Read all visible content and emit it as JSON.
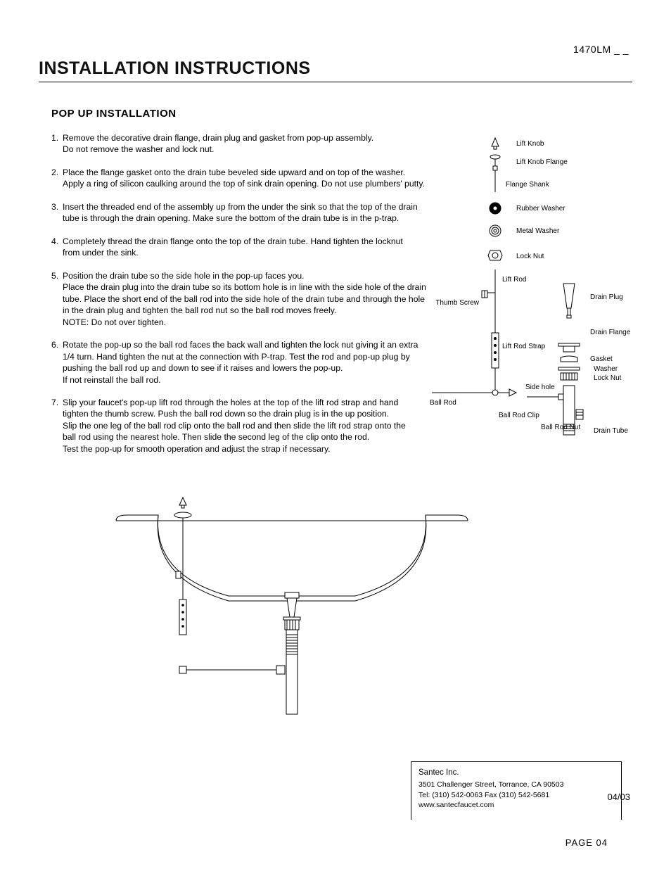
{
  "header": {
    "model": "1470LM _ _",
    "title": "INSTALLATION INSTRUCTIONS"
  },
  "section": {
    "subtitle": "POP UP INSTALLATION"
  },
  "steps": [
    {
      "n": "1.",
      "text": "Remove the decorative drain flange, drain plug and gasket from pop-up assembly.\nDo not remove the washer and lock nut."
    },
    {
      "n": "2.",
      "text": "Place the flange gasket onto the drain tube beveled side upward  and on top of the  washer.\nApply a ring of silicon caulking around the top of sink drain opening. Do not use plumbers' putty."
    },
    {
      "n": "3.",
      "text": "Insert the threaded end of the assembly up from the under  the sink so that the top of the drain\ntube is through the drain opening.  Make sure the bottom of the drain tube is in the p-trap."
    },
    {
      "n": "4.",
      "text": "Completely thread the drain flange onto the top of the drain tube. Hand tighten the locknut\nfrom under the sink."
    },
    {
      "n": "5.",
      "text": "Position the drain tube so the side hole in the pop-up faces you.\nPlace the drain plug into the drain tube so its bottom hole is in line with the side hole of the drain\ntube. Place the short end of the ball rod into the side hole of the drain tube and through the hole\nin the drain plug and tighten the ball rod nut so the ball rod moves freely.\nNOTE: Do not over tighten."
    },
    {
      "n": "6.",
      "text": "Rotate the pop-up so the ball rod faces the back wall and tighten the lock nut giving it an extra\n1/4 turn.  Hand tighten the nut at the connection with P-trap. Test the rod and pop-up plug by\npushing the ball rod up and down to  see if it raises and lowers the pop-up.\nIf not reinstall the  ball rod."
    },
    {
      "n": "7.",
      "text": "Slip your faucet's pop-up lift rod through the holes at the top of the lift rod strap and hand\ntighten the thumb screw. Push the ball rod down  so the drain plug is in the up position.\nSlip the one leg of the ball rod clip onto  the ball rod and then slide the lift rod strap onto the\n ball rod using the nearest hole. Then slide the second leg of the clip onto the rod.\nTest the pop-up for smooth operation and adjust the strap if necessary."
    }
  ],
  "labels": {
    "lift_knob": "Lift Knob",
    "lift_knob_flange": "Lift Knob Flange",
    "flange_shank": "Flange Shank",
    "rubber_washer": "Rubber Washer",
    "metal_washer": "Metal Washer",
    "lock_nut": "Lock Nut",
    "lift_rod": "Lift Rod",
    "thumb_screw": "Thumb Screw",
    "lift_rod_strap": "Lift Rod Strap",
    "ball_rod": "Ball Rod",
    "ball_rod_clip": "Ball Rod Clip",
    "ball_rod_nut": "Ball Rod Nut",
    "drain_plug": "Drain Plug",
    "drain_flange": "Drain Flange",
    "gasket": "Gasket",
    "washer": "Washer",
    "lock_nut2": "Lock Nut",
    "side_hole": "Side hole",
    "drain_tube": "Drain Tube"
  },
  "footer": {
    "company": "Santec Inc.",
    "address": "3501 Challenger Street, Torrance, CA 90503",
    "phone": "Tel: (310) 542-0063  Fax (310) 542-5681",
    "site": "www.santecfaucet.com",
    "date": "04/03",
    "page": "PAGE  04"
  },
  "style": {
    "stroke": "#000000",
    "fill": "#ffffff",
    "text_color": "#000000",
    "title_fontsize": 25,
    "body_fontsize": 12.2,
    "label_fontsize": 10,
    "line_width": 1
  }
}
